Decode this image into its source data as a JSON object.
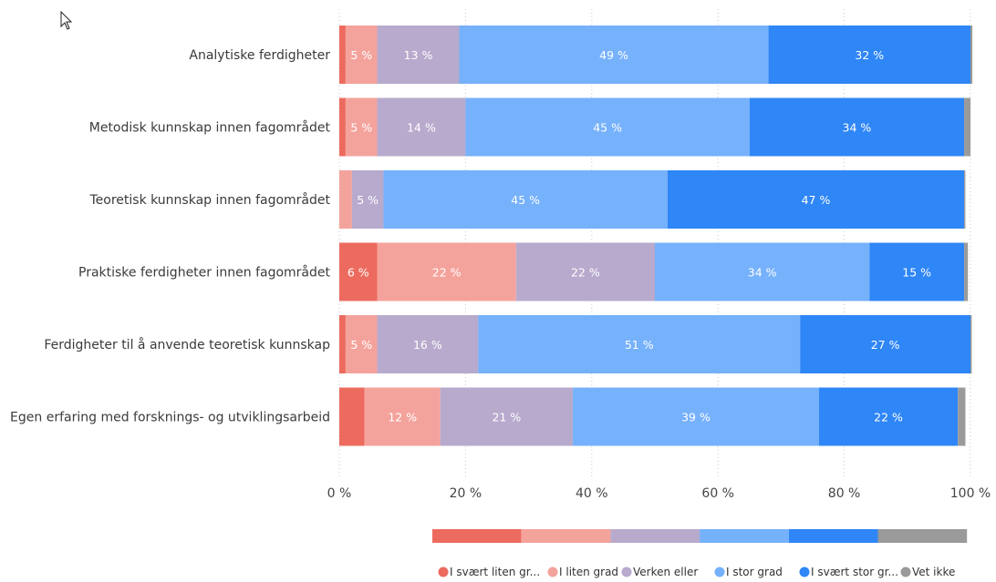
{
  "chart_data": {
    "type": "bar",
    "orientation": "horizontal",
    "stacked": true,
    "categories": [
      "Analytiske ferdigheter",
      "Metodisk kunnskap innen fagområdet",
      "Teoretisk kunnskap innen fagområdet",
      "Praktiske ferdigheter innen fagområdet",
      "Ferdigheter til å anvende teoretisk kunnskap",
      "Egen erfaring med forsknings- og utviklingsarbeid"
    ],
    "series": [
      {
        "name": "I svært liten gr...",
        "color": "#ec6b5e",
        "values": [
          1,
          1,
          0,
          6,
          1,
          4
        ],
        "labels": [
          "",
          "",
          "",
          "6 %",
          "",
          ""
        ]
      },
      {
        "name": "I liten grad",
        "color": "#f4a39c",
        "values": [
          5,
          5,
          2,
          22,
          5,
          12
        ],
        "labels": [
          "5 %",
          "5 %",
          "",
          "22 %",
          "5 %",
          "12 %"
        ]
      },
      {
        "name": "Verken eller",
        "color": "#b7aacd",
        "values": [
          13,
          14,
          5,
          22,
          16,
          21
        ],
        "labels": [
          "13 %",
          "14 %",
          "5 %",
          "22 %",
          "16 %",
          "21 %"
        ]
      },
      {
        "name": "I stor grad",
        "color": "#76b1fb",
        "values": [
          49,
          45,
          45,
          34,
          51,
          39
        ],
        "labels": [
          "49 %",
          "45 %",
          "45 %",
          "34 %",
          "51 %",
          "39 %"
        ]
      },
      {
        "name": "I svært stor gr...",
        "color": "#2f86f6",
        "values": [
          32,
          34,
          47,
          15,
          27,
          22
        ],
        "labels": [
          "32 %",
          "34 %",
          "47 %",
          "15 %",
          "27 %",
          "22 %"
        ]
      },
      {
        "name": "Vet ikke",
        "color": "#9a9a9a",
        "values": [
          0.3,
          1,
          0.2,
          0.6,
          0.2,
          1.2
        ],
        "labels": [
          "",
          "",
          "",
          "",
          "",
          ""
        ]
      }
    ],
    "xlim": [
      0,
      100
    ],
    "xticks": [
      0,
      20,
      40,
      60,
      80,
      100
    ],
    "xtick_labels": [
      "0 %",
      "20 %",
      "40 %",
      "60 %",
      "80 %",
      "100 %"
    ],
    "grid": true,
    "legend_position": "bottom-right"
  }
}
